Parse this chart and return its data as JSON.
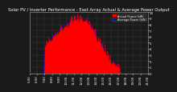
{
  "title": "Solar PV / Inverter Performance - East Array Actual & Average Power Output",
  "background_color": "#1a1a1a",
  "plot_bg_color": "#1a1a1a",
  "fill_color": "#ff0000",
  "avg_line_color": "#0000ff",
  "grid_color": "#555555",
  "xlim": [
    0,
    143
  ],
  "ylim": [
    0,
    10
  ],
  "yticks": [
    0,
    1,
    2,
    3,
    4,
    5,
    6,
    7,
    8,
    9,
    10
  ],
  "ytick_labels": [
    "0",
    "1",
    "2",
    "3",
    "4",
    "5",
    "6",
    "7",
    "8",
    "9",
    "10"
  ],
  "title_fontsize": 3.8,
  "tick_fontsize": 2.8,
  "legend_fontsize": 2.5,
  "title_color": "#ffffff",
  "tick_color": "#ffffff",
  "legend_items": [
    "Actual Power (kW)",
    "Average Power (kW)"
  ],
  "legend_colors": [
    "#ff0000",
    "#0000ff"
  ],
  "xtick_labels": [
    "5:00",
    "6:00",
    "7:00",
    "8:00",
    "9:00",
    "10:00",
    "11:00",
    "12:00",
    "13:00",
    "14:00",
    "15:00",
    "16:00",
    "17:00",
    "18:00",
    "19:00",
    "20:00",
    "21:00"
  ]
}
